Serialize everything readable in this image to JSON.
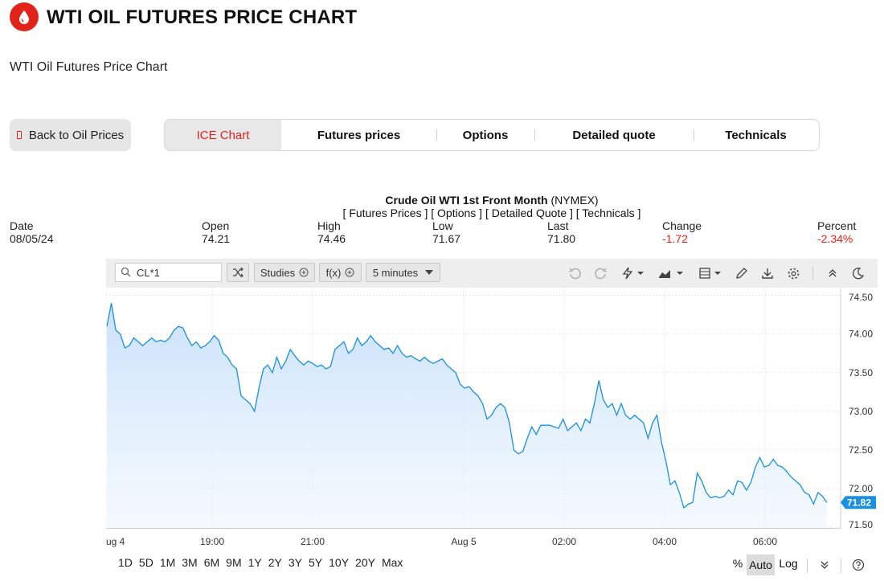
{
  "header": {
    "title": "WTI OIL FUTURES PRICE CHART",
    "subtitle": "WTI Oil Futures Price Chart"
  },
  "nav": {
    "back_label": "Back to Oil Prices",
    "tabs": [
      {
        "label": "ICE Chart",
        "active": true
      },
      {
        "label": "Futures prices"
      },
      {
        "label": "Options"
      },
      {
        "label": "Detailed quote"
      },
      {
        "label": "Technicals"
      }
    ]
  },
  "quote": {
    "name": "Crude Oil WTI 1st Front Month",
    "exchange": "(NYMEX)",
    "links": "[ Futures Prices ] [ Options ] [ Detailed Quote ] [ Technicals ]",
    "labels": {
      "date": "Date",
      "open": "Open",
      "high": "High",
      "low": "Low",
      "last": "Last",
      "change": "Change",
      "percent": "Percent"
    },
    "values": {
      "date": "08/05/24",
      "open": "74.21",
      "high": "74.46",
      "low": "71.67",
      "last": "71.80",
      "change": "-1.72",
      "percent": "-2.34%"
    }
  },
  "toolbar": {
    "symbol": "CL*1",
    "studies": "Studies",
    "fx": "f(x)",
    "interval": "5 minutes",
    "icons": [
      "compare-icon",
      "undo-icon",
      "redo-icon",
      "drawing-tools-icon",
      "chart-type-icon",
      "layout-icon",
      "pencil-icon",
      "download-icon",
      "settings-icon",
      "collapse-icon",
      "dark-mode-icon"
    ]
  },
  "ranges": [
    "1D",
    "5D",
    "1M",
    "3M",
    "6M",
    "9M",
    "1Y",
    "2Y",
    "3Y",
    "5Y",
    "10Y",
    "20Y",
    "Max"
  ],
  "scale_options": {
    "percent": "%",
    "auto": "Auto",
    "log": "Log"
  },
  "colors": {
    "accent": "#e2231a",
    "line": "#1a8fe3",
    "fill": "#cfe5fb",
    "price_tag": "#1a8fe3"
  },
  "chart_data": {
    "type": "area",
    "x_ticks": [
      "ug 4",
      "19:00",
      "21:00",
      "Aug 5",
      "02:00",
      "04:00",
      "06:00"
    ],
    "y_ticks": [
      "74.50",
      "74.00",
      "73.50",
      "73.00",
      "72.50",
      "72.00",
      "71.50"
    ],
    "ylim": [
      71.5,
      74.6
    ],
    "last_price_label": "71.82",
    "grid": true,
    "values": [
      74.1,
      74.4,
      74.05,
      74.0,
      73.82,
      73.85,
      73.95,
      73.9,
      73.85,
      73.9,
      73.95,
      73.9,
      73.92,
      73.9,
      73.95,
      74.05,
      74.1,
      74.08,
      73.95,
      73.85,
      73.9,
      73.82,
      73.85,
      73.9,
      73.98,
      73.92,
      73.75,
      73.7,
      73.6,
      73.55,
      73.2,
      73.15,
      73.1,
      73.0,
      73.3,
      73.55,
      73.6,
      73.5,
      73.7,
      73.55,
      73.65,
      73.8,
      73.72,
      73.65,
      73.6,
      73.65,
      73.62,
      73.58,
      73.6,
      73.55,
      73.58,
      73.8,
      73.85,
      73.9,
      73.75,
      73.8,
      73.95,
      73.85,
      73.9,
      73.98,
      73.9,
      73.85,
      73.8,
      73.82,
      73.75,
      73.85,
      73.75,
      73.7,
      73.72,
      73.68,
      73.65,
      73.7,
      73.65,
      73.62,
      73.65,
      73.68,
      73.6,
      73.55,
      73.5,
      73.35,
      73.3,
      73.32,
      73.25,
      73.2,
      73.1,
      72.9,
      72.95,
      73.05,
      73.1,
      73.05,
      72.85,
      72.5,
      72.45,
      72.48,
      72.65,
      72.8,
      72.7,
      72.82,
      72.82,
      72.82,
      72.8,
      72.78,
      72.9,
      72.75,
      72.8,
      72.85,
      72.75,
      72.9,
      72.85,
      73.1,
      73.4,
      73.15,
      73.05,
      73.1,
      72.95,
      73.1,
      72.95,
      72.9,
      72.95,
      72.9,
      72.85,
      72.65,
      72.85,
      72.95,
      72.6,
      72.35,
      72.05,
      72.1,
      71.95,
      71.75,
      71.8,
      71.82,
      72.2,
      72.1,
      71.95,
      71.88,
      71.9,
      71.88,
      71.9,
      71.98,
      71.92,
      72.1,
      72.08,
      71.98,
      72.08,
      72.28,
      72.4,
      72.28,
      72.3,
      72.38,
      72.3,
      72.28,
      72.22,
      72.15,
      72.1,
      72.05,
      71.95,
      71.92,
      71.8,
      71.95,
      71.9,
      71.82
    ]
  }
}
